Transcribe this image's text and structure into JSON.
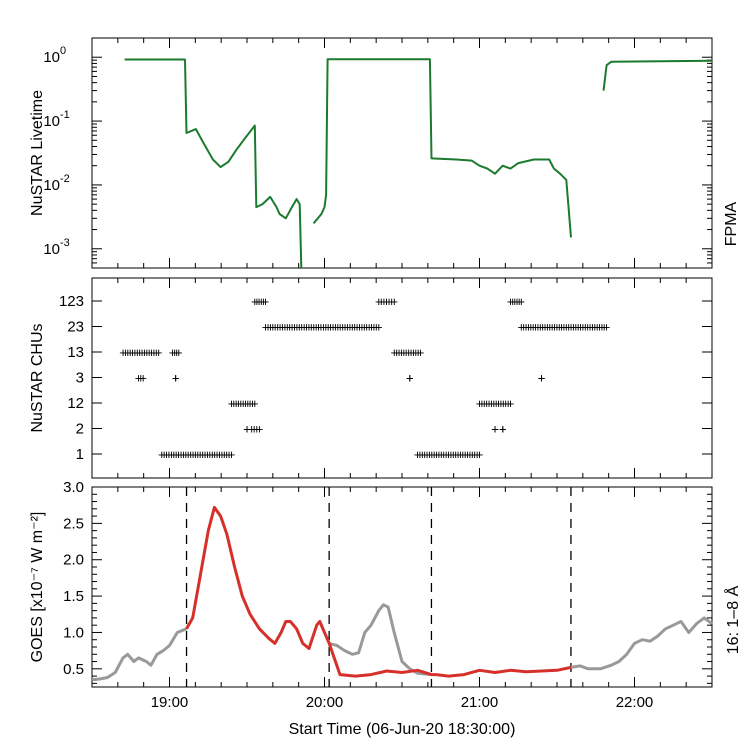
{
  "figure": {
    "xlabel": "Start Time (06-Jun-20 18:30:00)",
    "x_ticks": [
      "19:00",
      "20:00",
      "21:00",
      "22:00"
    ]
  },
  "chart_data": [
    {
      "type": "line",
      "name": "livetime",
      "ylabel": "NuSTAR Livetime",
      "yscale": "log",
      "ylim": [
        0.0005,
        2.0
      ],
      "xlim_hours": [
        18.5,
        22.5
      ],
      "y_ticks": [
        {
          "base": "10",
          "exp": "0"
        },
        {
          "base": "10",
          "exp": "-1"
        },
        {
          "base": "10",
          "exp": "-2"
        },
        {
          "base": "10",
          "exp": "-3"
        }
      ],
      "y_tick_values": [
        1,
        0.1,
        0.01,
        0.001
      ],
      "right_label": "FPMA",
      "color": "#1a7a2e",
      "segments": [
        [
          [
            18.71,
            0.92
          ],
          [
            19.1,
            0.92
          ],
          [
            19.11,
            0.065
          ],
          [
            19.17,
            0.075
          ],
          [
            19.22,
            0.045
          ],
          [
            19.28,
            0.025
          ],
          [
            19.33,
            0.019
          ],
          [
            19.38,
            0.023
          ],
          [
            19.43,
            0.035
          ],
          [
            19.49,
            0.055
          ],
          [
            19.55,
            0.085
          ],
          [
            19.56,
            0.0045
          ],
          [
            19.6,
            0.005
          ],
          [
            19.65,
            0.0065
          ],
          [
            19.69,
            0.0045
          ],
          [
            19.71,
            0.0035
          ],
          [
            19.75,
            0.003
          ],
          [
            19.79,
            0.0045
          ],
          [
            19.82,
            0.006
          ],
          [
            19.84,
            0.005
          ],
          [
            19.85,
            0.0005
          ]
        ],
        [
          [
            19.93,
            0.0025
          ],
          [
            19.98,
            0.0035
          ],
          [
            20.0,
            0.0045
          ],
          [
            20.01,
            0.007
          ],
          [
            20.02,
            0.93
          ],
          [
            20.68,
            0.93
          ],
          [
            20.69,
            0.026
          ],
          [
            20.85,
            0.025
          ],
          [
            20.95,
            0.024
          ],
          [
            21.0,
            0.02
          ],
          [
            21.05,
            0.018
          ],
          [
            21.1,
            0.015
          ],
          [
            21.15,
            0.02
          ],
          [
            21.2,
            0.018
          ],
          [
            21.25,
            0.022
          ],
          [
            21.35,
            0.025
          ],
          [
            21.45,
            0.025
          ],
          [
            21.48,
            0.018
          ],
          [
            21.52,
            0.015
          ],
          [
            21.56,
            0.012
          ],
          [
            21.59,
            0.0015
          ]
        ],
        [
          [
            21.8,
            0.3
          ],
          [
            21.82,
            0.75
          ],
          [
            21.85,
            0.85
          ],
          [
            22.5,
            0.88
          ]
        ]
      ]
    },
    {
      "type": "scatter",
      "name": "chus",
      "ylabel": "NuSTAR CHUs",
      "categories": [
        "1",
        "2",
        "12",
        "3",
        "13",
        "23",
        "123"
      ],
      "xlim_hours": [
        18.5,
        22.5
      ],
      "marker": "+",
      "runs": [
        {
          "cat": "13",
          "x0": 18.7,
          "x1": 18.93
        },
        {
          "cat": "3",
          "x0": 18.8,
          "x1": 18.83
        },
        {
          "cat": "13",
          "x0": 19.02,
          "x1": 19.06
        },
        {
          "cat": "3",
          "x0": 19.04,
          "x1": 19.04
        },
        {
          "cat": "1",
          "x0": 18.95,
          "x1": 19.4
        },
        {
          "cat": "12",
          "x0": 19.4,
          "x1": 19.55
        },
        {
          "cat": "2",
          "x0": 19.5,
          "x1": 19.5
        },
        {
          "cat": "2",
          "x0": 19.53,
          "x1": 19.58
        },
        {
          "cat": "123",
          "x0": 19.55,
          "x1": 19.62
        },
        {
          "cat": "23",
          "x0": 19.62,
          "x1": 20.35
        },
        {
          "cat": "123",
          "x0": 20.35,
          "x1": 20.45
        },
        {
          "cat": "13",
          "x0": 20.45,
          "x1": 20.62
        },
        {
          "cat": "3",
          "x0": 20.55,
          "x1": 20.55
        },
        {
          "cat": "1",
          "x0": 20.6,
          "x1": 21.0
        },
        {
          "cat": "12",
          "x0": 21.0,
          "x1": 21.2
        },
        {
          "cat": "2",
          "x0": 21.1,
          "x1": 21.1
        },
        {
          "cat": "2",
          "x0": 21.15,
          "x1": 21.15
        },
        {
          "cat": "123",
          "x0": 21.2,
          "x1": 21.27
        },
        {
          "cat": "23",
          "x0": 21.27,
          "x1": 21.82
        },
        {
          "cat": "3",
          "x0": 21.4,
          "x1": 21.4
        }
      ]
    },
    {
      "type": "line",
      "name": "goes",
      "ylabel": "GOES [x10⁻⁷ W m⁻²]",
      "ylim": [
        0.25,
        3.0
      ],
      "xlim_hours": [
        18.5,
        22.5
      ],
      "y_ticks": [
        "0.5",
        "1.0",
        "1.5",
        "2.0",
        "2.5",
        "3.0"
      ],
      "y_tick_values": [
        0.5,
        1.0,
        1.5,
        2.0,
        2.5,
        3.0
      ],
      "right_label": "16: 1–8 Å",
      "gray_color": "#999999",
      "red_color": "#d6302b",
      "dashed_lines_hours": [
        19.11,
        20.03,
        20.69,
        21.59
      ],
      "gray_series": [
        [
          18.5,
          0.35
        ],
        [
          18.55,
          0.36
        ],
        [
          18.6,
          0.38
        ],
        [
          18.65,
          0.45
        ],
        [
          18.7,
          0.65
        ],
        [
          18.73,
          0.7
        ],
        [
          18.77,
          0.6
        ],
        [
          18.8,
          0.65
        ],
        [
          18.85,
          0.6
        ],
        [
          18.88,
          0.55
        ],
        [
          18.92,
          0.7
        ],
        [
          18.96,
          0.75
        ],
        [
          19.0,
          0.82
        ],
        [
          19.05,
          1.0
        ],
        [
          19.11,
          1.05
        ],
        [
          20.03,
          0.85
        ],
        [
          20.08,
          0.82
        ],
        [
          20.13,
          0.75
        ],
        [
          20.18,
          0.7
        ],
        [
          20.22,
          0.72
        ],
        [
          20.26,
          1.0
        ],
        [
          20.3,
          1.1
        ],
        [
          20.35,
          1.3
        ],
        [
          20.38,
          1.38
        ],
        [
          20.41,
          1.35
        ],
        [
          20.45,
          1.0
        ],
        [
          20.5,
          0.6
        ],
        [
          20.55,
          0.5
        ],
        [
          20.6,
          0.44
        ],
        [
          20.69,
          0.42
        ],
        [
          21.59,
          0.52
        ],
        [
          21.65,
          0.54
        ],
        [
          21.7,
          0.5
        ],
        [
          21.78,
          0.5
        ],
        [
          21.85,
          0.55
        ],
        [
          21.9,
          0.6
        ],
        [
          21.95,
          0.7
        ],
        [
          22.0,
          0.85
        ],
        [
          22.05,
          0.9
        ],
        [
          22.1,
          0.88
        ],
        [
          22.15,
          0.95
        ],
        [
          22.2,
          1.05
        ],
        [
          22.25,
          1.1
        ],
        [
          22.3,
          1.15
        ],
        [
          22.35,
          1.0
        ],
        [
          22.4,
          1.12
        ],
        [
          22.45,
          1.2
        ],
        [
          22.5,
          1.12
        ]
      ],
      "red_series": [
        [
          19.11,
          1.05
        ],
        [
          19.15,
          1.2
        ],
        [
          19.2,
          1.8
        ],
        [
          19.25,
          2.4
        ],
        [
          19.29,
          2.72
        ],
        [
          19.33,
          2.6
        ],
        [
          19.37,
          2.35
        ],
        [
          19.42,
          1.9
        ],
        [
          19.47,
          1.5
        ],
        [
          19.52,
          1.25
        ],
        [
          19.58,
          1.05
        ],
        [
          19.64,
          0.92
        ],
        [
          19.68,
          0.85
        ],
        [
          19.72,
          1.0
        ],
        [
          19.75,
          1.15
        ],
        [
          19.78,
          1.15
        ],
        [
          19.82,
          1.05
        ],
        [
          19.86,
          0.85
        ],
        [
          19.9,
          0.78
        ],
        [
          19.95,
          1.1
        ],
        [
          19.97,
          1.15
        ],
        [
          20.0,
          1.0
        ],
        [
          20.03,
          0.85
        ],
        [
          20.1,
          0.42
        ],
        [
          20.2,
          0.4
        ],
        [
          20.3,
          0.42
        ],
        [
          20.4,
          0.47
        ],
        [
          20.5,
          0.45
        ],
        [
          20.6,
          0.48
        ],
        [
          20.69,
          0.42
        ],
        [
          20.72,
          0.42
        ],
        [
          20.8,
          0.4
        ],
        [
          20.9,
          0.42
        ],
        [
          21.0,
          0.48
        ],
        [
          21.1,
          0.45
        ],
        [
          21.2,
          0.48
        ],
        [
          21.3,
          0.46
        ],
        [
          21.4,
          0.47
        ],
        [
          21.5,
          0.48
        ],
        [
          21.59,
          0.52
        ]
      ]
    }
  ]
}
